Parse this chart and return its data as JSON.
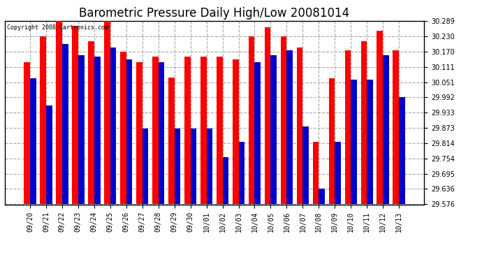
{
  "title": "Barometric Pressure Daily High/Low 20081014",
  "copyright": "Copyright 2008 Cartronics.com",
  "categories": [
    "09/20",
    "09/21",
    "09/22",
    "09/23",
    "09/24",
    "09/25",
    "09/26",
    "09/27",
    "09/28",
    "09/29",
    "09/30",
    "10/01",
    "10/02",
    "10/03",
    "10/04",
    "10/05",
    "10/06",
    "10/07",
    "10/08",
    "10/09",
    "10/10",
    "10/11",
    "10/12",
    "10/13"
  ],
  "highs": [
    30.13,
    30.23,
    30.289,
    30.27,
    30.21,
    30.289,
    30.17,
    30.13,
    30.15,
    30.07,
    30.15,
    30.15,
    30.15,
    30.14,
    30.23,
    30.265,
    30.23,
    30.185,
    29.82,
    30.065,
    30.175,
    30.21,
    30.25,
    30.175
  ],
  "lows": [
    30.065,
    29.96,
    30.2,
    30.155,
    30.15,
    30.185,
    30.14,
    29.87,
    30.13,
    29.87,
    29.87,
    29.87,
    29.76,
    29.82,
    30.13,
    30.155,
    30.175,
    29.88,
    29.636,
    29.82,
    30.06,
    30.06,
    30.155,
    29.992
  ],
  "ymin": 29.576,
  "ymax": 30.289,
  "yticks": [
    29.576,
    29.636,
    29.695,
    29.754,
    29.814,
    29.873,
    29.933,
    29.992,
    30.051,
    30.111,
    30.17,
    30.23,
    30.289
  ],
  "bar_width": 0.38,
  "high_color": "#ff0000",
  "low_color": "#0000cc",
  "bg_color": "#ffffff",
  "plot_bg_color": "#ffffff",
  "grid_color": "#aaaaaa",
  "title_fontsize": 12,
  "tick_fontsize": 7
}
